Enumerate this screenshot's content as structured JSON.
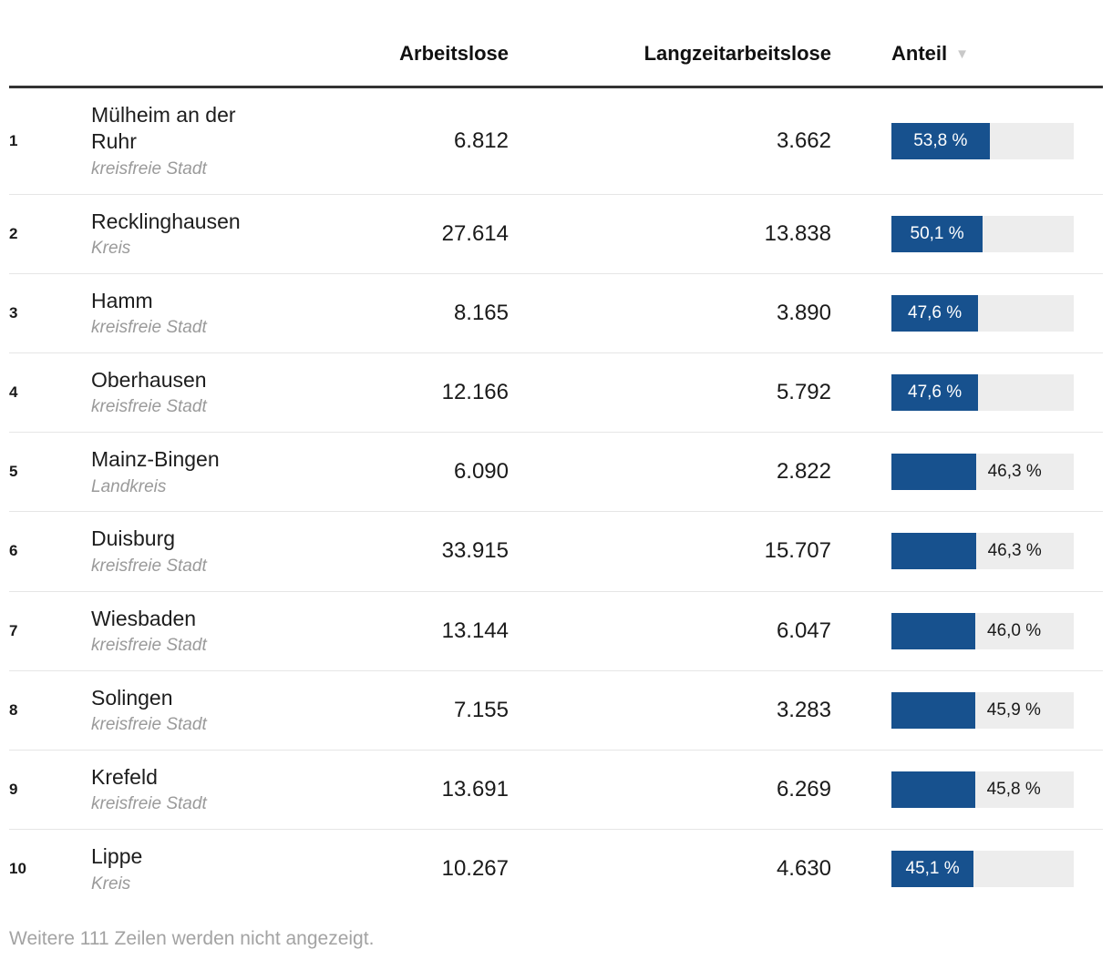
{
  "table": {
    "columns": [
      "Arbeitslose",
      "Langzeitarbeitslose",
      "Anteil"
    ],
    "sort_icon": "▼",
    "bar_color": "#17518e",
    "track_color": "#ededed",
    "rows": [
      {
        "rank": "1",
        "name": [
          "Mülheim an der",
          "Ruhr"
        ],
        "type": "kreisfreie Stadt",
        "unemployed": "6.812",
        "longterm": "3.662",
        "share_label": "53,8 %",
        "share_pct": 53.8,
        "label_inside": true
      },
      {
        "rank": "2",
        "name": "Recklinghausen",
        "type": "Kreis",
        "unemployed": "27.614",
        "longterm": "13.838",
        "share_label": "50,1 %",
        "share_pct": 50.1,
        "label_inside": true
      },
      {
        "rank": "3",
        "name": "Hamm",
        "type": "kreisfreie Stadt",
        "unemployed": "8.165",
        "longterm": "3.890",
        "share_label": "47,6 %",
        "share_pct": 47.6,
        "label_inside": true
      },
      {
        "rank": "4",
        "name": "Oberhausen",
        "type": "kreisfreie Stadt",
        "unemployed": "12.166",
        "longterm": "5.792",
        "share_label": "47,6 %",
        "share_pct": 47.6,
        "label_inside": true
      },
      {
        "rank": "5",
        "name": "Mainz-Bingen",
        "type": "Landkreis",
        "unemployed": "6.090",
        "longterm": "2.822",
        "share_label": "46,3 %",
        "share_pct": 46.3,
        "label_inside": false
      },
      {
        "rank": "6",
        "name": "Duisburg",
        "type": "kreisfreie Stadt",
        "unemployed": "33.915",
        "longterm": "15.707",
        "share_label": "46,3 %",
        "share_pct": 46.3,
        "label_inside": false
      },
      {
        "rank": "7",
        "name": "Wiesbaden",
        "type": "kreisfreie Stadt",
        "unemployed": "13.144",
        "longterm": "6.047",
        "share_label": "46,0 %",
        "share_pct": 46.0,
        "label_inside": false
      },
      {
        "rank": "8",
        "name": "Solingen",
        "type": "kreisfreie Stadt",
        "unemployed": "7.155",
        "longterm": "3.283",
        "share_label": "45,9 %",
        "share_pct": 45.9,
        "label_inside": false
      },
      {
        "rank": "9",
        "name": "Krefeld",
        "type": "kreisfreie Stadt",
        "unemployed": "13.691",
        "longterm": "6.269",
        "share_label": "45,8 %",
        "share_pct": 45.8,
        "label_inside": false
      },
      {
        "rank": "10",
        "name": "Lippe",
        "type": "Kreis",
        "unemployed": "10.267",
        "longterm": "4.630",
        "share_label": "45,1 %",
        "share_pct": 45.1,
        "label_inside": true
      }
    ]
  },
  "footer": {
    "note": "Weitere 111 Zeilen werden nicht angezeigt."
  },
  "chart_data": {
    "type": "table",
    "columns": [
      "Arbeitslose",
      "Langzeitarbeitslose",
      "Anteil"
    ],
    "categories": [
      "Mülheim an der Ruhr (kreisfreie Stadt)",
      "Recklinghausen (Kreis)",
      "Hamm (kreisfreie Stadt)",
      "Oberhausen (kreisfreie Stadt)",
      "Mainz-Bingen (Landkreis)",
      "Duisburg (kreisfreie Stadt)",
      "Wiesbaden (kreisfreie Stadt)",
      "Solingen (kreisfreie Stadt)",
      "Krefeld (kreisfreie Stadt)",
      "Lippe (Kreis)"
    ],
    "series": [
      {
        "name": "Arbeitslose",
        "values": [
          6812,
          27614,
          8165,
          12166,
          6090,
          33915,
          13144,
          7155,
          13691,
          10267
        ]
      },
      {
        "name": "Langzeitarbeitslose",
        "values": [
          3662,
          13838,
          3890,
          5792,
          2822,
          15707,
          6047,
          3283,
          6269,
          4630
        ]
      },
      {
        "name": "Anteil (%)",
        "values": [
          53.8,
          50.1,
          47.6,
          47.6,
          46.3,
          46.3,
          46.0,
          45.9,
          45.8,
          45.1
        ]
      }
    ],
    "bar_column": {
      "name": "Anteil",
      "type": "bar",
      "range": [
        0,
        100
      ],
      "bar_color": "#17518e",
      "track_color": "#ededed"
    },
    "sort": {
      "column": "Anteil",
      "direction": "desc"
    },
    "note": "Weitere 111 Zeilen werden nicht angezeigt."
  }
}
